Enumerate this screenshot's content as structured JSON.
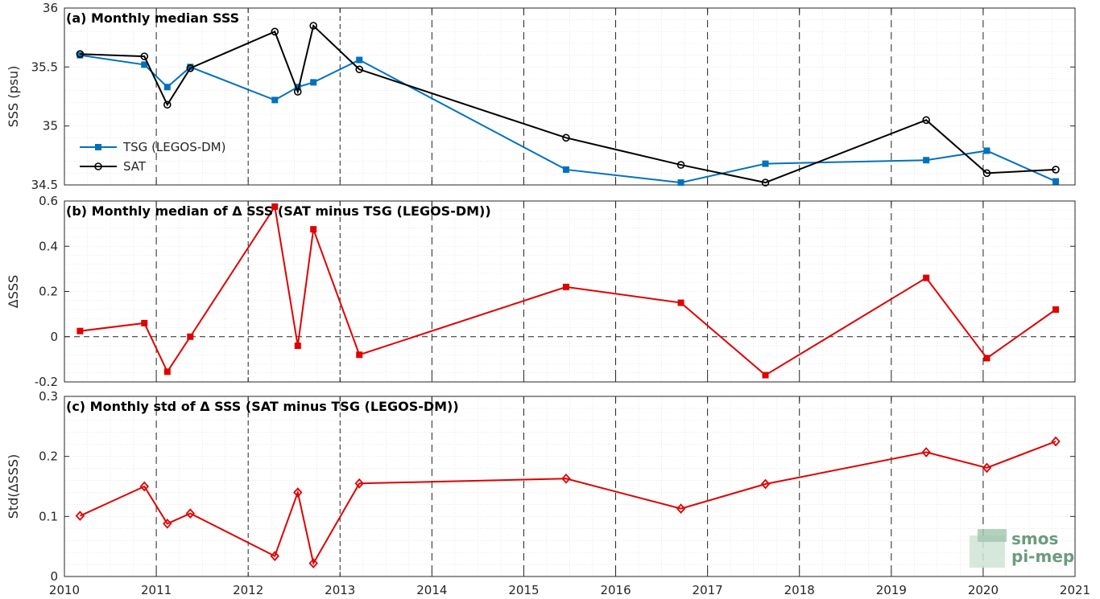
{
  "colors": {
    "tsg": "#0072bd",
    "sat": "#000000",
    "delta": "#e00000",
    "grid": "#d9d9d9",
    "logo": "#6a9c7e"
  },
  "logo": {
    "line1": "smos",
    "line2": "pi-mep"
  },
  "chart_data": [
    {
      "type": "line",
      "title": "(a) Monthly median SSS",
      "ylabel": "SSS (psu)",
      "xlim": [
        2010,
        2021
      ],
      "ylim": [
        34.5,
        36
      ],
      "yticks": [
        34.5,
        35,
        35.5,
        36
      ],
      "ytick_labels": [
        "34.5",
        "35",
        "35.5",
        "36"
      ],
      "grid": true,
      "legend": "lower-left",
      "series": [
        {
          "name": "TSG (LEGOS-DM)",
          "color": "#0072bd",
          "marker": "square",
          "x": [
            2010.17,
            2010.87,
            2011.12,
            2011.37,
            2012.29,
            2012.54,
            2012.71,
            2013.21,
            2015.46,
            2016.71,
            2017.63,
            2019.38,
            2020.04,
            2020.79
          ],
          "y": [
            35.6,
            35.52,
            35.33,
            35.5,
            35.22,
            35.33,
            35.37,
            35.56,
            34.63,
            34.52,
            34.68,
            34.71,
            34.79,
            34.53
          ]
        },
        {
          "name": "SAT",
          "color": "#000000",
          "marker": "circle",
          "x": [
            2010.17,
            2010.87,
            2011.12,
            2011.37,
            2012.29,
            2012.54,
            2012.71,
            2013.21,
            2015.46,
            2016.71,
            2017.63,
            2019.38,
            2020.04,
            2020.79
          ],
          "y": [
            35.61,
            35.59,
            35.18,
            35.49,
            35.8,
            35.29,
            35.85,
            35.48,
            34.9,
            34.67,
            34.52,
            35.05,
            34.6,
            34.63
          ]
        }
      ],
      "vlines_solid": [
        2012,
        2013
      ],
      "vlines_dashed": [
        2011,
        2014,
        2015,
        2016,
        2017,
        2018,
        2019,
        2020
      ]
    },
    {
      "type": "line",
      "title": "(b) Monthly median of Δ SSS (SAT minus TSG (LEGOS-DM))",
      "ylabel": "ΔSSS",
      "xlim": [
        2010,
        2021
      ],
      "ylim": [
        -0.2,
        0.6
      ],
      "yticks": [
        -0.2,
        0,
        0.2,
        0.4,
        0.6
      ],
      "ytick_labels": [
        "-0.2",
        "0",
        "0.2",
        "0.4",
        "0.6"
      ],
      "grid": true,
      "hline_dashed": 0,
      "series": [
        {
          "color": "#e00000",
          "marker": "square",
          "x": [
            2010.17,
            2010.87,
            2011.12,
            2011.37,
            2012.29,
            2012.54,
            2012.71,
            2013.21,
            2015.46,
            2016.71,
            2017.63,
            2019.38,
            2020.04,
            2020.79
          ],
          "y": [
            0.025,
            0.06,
            -0.155,
            0.0,
            0.575,
            -0.04,
            0.475,
            -0.08,
            0.22,
            0.15,
            -0.17,
            0.26,
            -0.095,
            0.12
          ]
        }
      ],
      "vlines_solid": [
        2012,
        2013
      ],
      "vlines_dashed": [
        2011,
        2014,
        2015,
        2016,
        2017,
        2018,
        2019,
        2020
      ]
    },
    {
      "type": "line",
      "title": "(c) Monthly std of Δ SSS (SAT minus TSG (LEGOS-DM))",
      "ylabel": "Std(ΔSSS)",
      "xlabel": "",
      "xlim": [
        2010,
        2021
      ],
      "ylim": [
        0,
        0.3
      ],
      "yticks": [
        0,
        0.1,
        0.2,
        0.3
      ],
      "ytick_labels": [
        "0",
        "0.1",
        "0.2",
        "0.3"
      ],
      "xticks": [
        2010,
        2011,
        2012,
        2013,
        2014,
        2015,
        2016,
        2017,
        2018,
        2019,
        2020,
        2021
      ],
      "xtick_labels": [
        "2010",
        "2011",
        "2012",
        "2013",
        "2014",
        "2015",
        "2016",
        "2017",
        "2018",
        "2019",
        "2020",
        "2021"
      ],
      "grid": true,
      "series": [
        {
          "color": "#e00000",
          "marker": "diamond",
          "x": [
            2010.17,
            2010.87,
            2011.12,
            2011.37,
            2012.29,
            2012.54,
            2012.71,
            2013.21,
            2015.46,
            2016.71,
            2017.63,
            2019.38,
            2020.04,
            2020.79
          ],
          "y": [
            0.101,
            0.15,
            0.088,
            0.105,
            0.034,
            0.14,
            0.022,
            0.155,
            0.163,
            0.113,
            0.154,
            0.207,
            0.181,
            0.225
          ]
        }
      ],
      "vlines_solid": [
        2012,
        2013
      ],
      "vlines_dashed": [
        2011,
        2014,
        2015,
        2016,
        2017,
        2018,
        2019,
        2020
      ]
    }
  ]
}
